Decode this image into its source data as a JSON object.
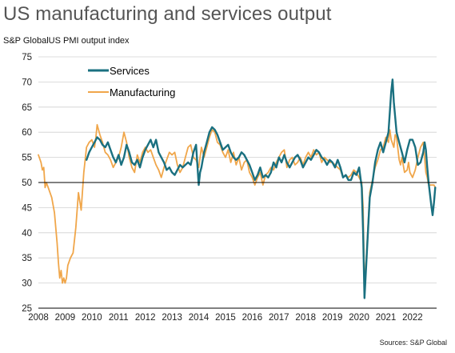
{
  "page": {
    "title": "US manufacturing and services output",
    "source": "Sources: S&P Global"
  },
  "chart_data": {
    "type": "line",
    "title": "US manufacturing and services output",
    "ylabel": "S&P GlobalUS PMI output index",
    "xlabel": "",
    "ylim": [
      25,
      75
    ],
    "yticks": [
      25,
      30,
      35,
      40,
      45,
      50,
      55,
      60,
      65,
      70,
      75
    ],
    "xlim": [
      2008,
      2022.9
    ],
    "xticks": [
      "2008",
      "2009",
      "2010",
      "2011",
      "2012",
      "2013",
      "2014",
      "2015",
      "2016",
      "2017",
      "2018",
      "2019",
      "2020",
      "2021",
      "2022"
    ],
    "reference_line": 50,
    "grid": "horizontal",
    "legend": "top-left",
    "colors": {
      "services": "#1a7080",
      "manufacturing": "#f0a64a"
    },
    "series": [
      {
        "name": "Services",
        "color": "#1a7080",
        "points": [
          [
            2009.8,
            54.5
          ],
          [
            2009.9,
            56
          ],
          [
            2010.0,
            57
          ],
          [
            2010.1,
            58
          ],
          [
            2010.2,
            59
          ],
          [
            2010.3,
            58.5
          ],
          [
            2010.4,
            57.5
          ],
          [
            2010.5,
            57
          ],
          [
            2010.6,
            58
          ],
          [
            2010.7,
            56.5
          ],
          [
            2010.8,
            55
          ],
          [
            2010.9,
            54
          ],
          [
            2011.0,
            55.5
          ],
          [
            2011.1,
            53.5
          ],
          [
            2011.2,
            55
          ],
          [
            2011.3,
            57.5
          ],
          [
            2011.4,
            56
          ],
          [
            2011.5,
            54
          ],
          [
            2011.6,
            53.5
          ],
          [
            2011.7,
            54.5
          ],
          [
            2011.8,
            53
          ],
          [
            2011.9,
            55
          ],
          [
            2012.0,
            56.5
          ],
          [
            2012.1,
            57.5
          ],
          [
            2012.2,
            58.5
          ],
          [
            2012.3,
            57
          ],
          [
            2012.4,
            58.5
          ],
          [
            2012.5,
            56
          ],
          [
            2012.6,
            55
          ],
          [
            2012.7,
            54
          ],
          [
            2012.8,
            52.5
          ],
          [
            2012.9,
            53
          ],
          [
            2013.0,
            52
          ],
          [
            2013.1,
            51.5
          ],
          [
            2013.2,
            52.5
          ],
          [
            2013.3,
            53.5
          ],
          [
            2013.4,
            53
          ],
          [
            2013.5,
            53.5
          ],
          [
            2013.6,
            54
          ],
          [
            2013.7,
            53.5
          ],
          [
            2013.8,
            56
          ],
          [
            2013.9,
            57.5
          ],
          [
            2014.0,
            49.5
          ],
          [
            2014.05,
            52
          ],
          [
            2014.1,
            53
          ],
          [
            2014.2,
            56
          ],
          [
            2014.3,
            58
          ],
          [
            2014.4,
            60
          ],
          [
            2014.5,
            61
          ],
          [
            2014.6,
            60.5
          ],
          [
            2014.7,
            59.5
          ],
          [
            2014.8,
            58
          ],
          [
            2014.9,
            56.5
          ],
          [
            2015.0,
            57
          ],
          [
            2015.1,
            57.5
          ],
          [
            2015.2,
            56
          ],
          [
            2015.3,
            55
          ],
          [
            2015.4,
            54.5
          ],
          [
            2015.5,
            55
          ],
          [
            2015.6,
            56
          ],
          [
            2015.7,
            55.5
          ],
          [
            2015.8,
            54.5
          ],
          [
            2015.9,
            53.5
          ],
          [
            2016.0,
            52
          ],
          [
            2016.1,
            50.5
          ],
          [
            2016.2,
            51.5
          ],
          [
            2016.3,
            53
          ],
          [
            2016.4,
            51
          ],
          [
            2016.5,
            51.5
          ],
          [
            2016.6,
            51
          ],
          [
            2016.7,
            52
          ],
          [
            2016.8,
            54
          ],
          [
            2016.9,
            53
          ],
          [
            2017.0,
            55
          ],
          [
            2017.1,
            54
          ],
          [
            2017.2,
            55.5
          ],
          [
            2017.3,
            54
          ],
          [
            2017.4,
            53
          ],
          [
            2017.5,
            54
          ],
          [
            2017.6,
            55
          ],
          [
            2017.7,
            55.5
          ],
          [
            2017.8,
            54.5
          ],
          [
            2017.9,
            53
          ],
          [
            2018.0,
            54
          ],
          [
            2018.1,
            55
          ],
          [
            2018.2,
            54.5
          ],
          [
            2018.3,
            55.5
          ],
          [
            2018.4,
            56.5
          ],
          [
            2018.5,
            56
          ],
          [
            2018.6,
            55
          ],
          [
            2018.7,
            54.5
          ],
          [
            2018.8,
            53.5
          ],
          [
            2018.9,
            54.5
          ],
          [
            2019.0,
            54
          ],
          [
            2019.1,
            53
          ],
          [
            2019.2,
            54.5
          ],
          [
            2019.3,
            53
          ],
          [
            2019.4,
            51
          ],
          [
            2019.5,
            51.5
          ],
          [
            2019.6,
            50.5
          ],
          [
            2019.7,
            50.5
          ],
          [
            2019.8,
            52
          ],
          [
            2019.9,
            51.5
          ],
          [
            2020.0,
            53
          ],
          [
            2020.1,
            49
          ],
          [
            2020.15,
            40
          ],
          [
            2020.2,
            27
          ],
          [
            2020.3,
            37
          ],
          [
            2020.4,
            47
          ],
          [
            2020.5,
            50
          ],
          [
            2020.6,
            54
          ],
          [
            2020.7,
            56.5
          ],
          [
            2020.8,
            58
          ],
          [
            2020.9,
            56
          ],
          [
            2021.0,
            58
          ],
          [
            2021.05,
            59
          ],
          [
            2021.1,
            60
          ],
          [
            2021.15,
            64
          ],
          [
            2021.2,
            68
          ],
          [
            2021.25,
            70.5
          ],
          [
            2021.3,
            66
          ],
          [
            2021.4,
            60
          ],
          [
            2021.5,
            58
          ],
          [
            2021.6,
            56
          ],
          [
            2021.7,
            54
          ],
          [
            2021.8,
            56.5
          ],
          [
            2021.9,
            58.5
          ],
          [
            2022.0,
            58.5
          ],
          [
            2022.1,
            57
          ],
          [
            2022.2,
            53.5
          ],
          [
            2022.3,
            54
          ],
          [
            2022.4,
            56
          ],
          [
            2022.45,
            58
          ],
          [
            2022.5,
            56.5
          ],
          [
            2022.55,
            53
          ],
          [
            2022.6,
            50
          ],
          [
            2022.7,
            45.5
          ],
          [
            2022.75,
            43.5
          ],
          [
            2022.8,
            46
          ],
          [
            2022.85,
            49
          ]
        ]
      },
      {
        "name": "Manufacturing",
        "color": "#f0a64a",
        "points": [
          [
            2008.0,
            55.5
          ],
          [
            2008.1,
            54
          ],
          [
            2008.15,
            52.5
          ],
          [
            2008.2,
            53
          ],
          [
            2008.25,
            49
          ],
          [
            2008.3,
            50
          ],
          [
            2008.4,
            48.5
          ],
          [
            2008.5,
            47
          ],
          [
            2008.6,
            44
          ],
          [
            2008.7,
            38
          ],
          [
            2008.75,
            34
          ],
          [
            2008.8,
            31
          ],
          [
            2008.85,
            32.5
          ],
          [
            2008.9,
            30
          ],
          [
            2008.95,
            31
          ],
          [
            2009.0,
            30
          ],
          [
            2009.05,
            31
          ],
          [
            2009.1,
            33.5
          ],
          [
            2009.2,
            35
          ],
          [
            2009.3,
            36
          ],
          [
            2009.4,
            41
          ],
          [
            2009.5,
            48
          ],
          [
            2009.6,
            44.5
          ],
          [
            2009.7,
            52
          ],
          [
            2009.8,
            57
          ],
          [
            2009.9,
            58
          ],
          [
            2010.0,
            58.5
          ],
          [
            2010.1,
            57
          ],
          [
            2010.15,
            59
          ],
          [
            2010.2,
            61.5
          ],
          [
            2010.25,
            60.5
          ],
          [
            2010.3,
            59.5
          ],
          [
            2010.4,
            58
          ],
          [
            2010.5,
            56
          ],
          [
            2010.6,
            55.5
          ],
          [
            2010.7,
            54.5
          ],
          [
            2010.8,
            53
          ],
          [
            2010.9,
            54
          ],
          [
            2011.0,
            55
          ],
          [
            2011.1,
            57
          ],
          [
            2011.2,
            60
          ],
          [
            2011.3,
            58
          ],
          [
            2011.4,
            55
          ],
          [
            2011.5,
            53
          ],
          [
            2011.6,
            52
          ],
          [
            2011.7,
            55.5
          ],
          [
            2011.8,
            54
          ],
          [
            2011.9,
            56
          ],
          [
            2012.0,
            57
          ],
          [
            2012.1,
            56
          ],
          [
            2012.2,
            56.5
          ],
          [
            2012.3,
            55
          ],
          [
            2012.4,
            53.5
          ],
          [
            2012.5,
            52.5
          ],
          [
            2012.6,
            51
          ],
          [
            2012.7,
            53
          ],
          [
            2012.8,
            54.5
          ],
          [
            2012.9,
            56
          ],
          [
            2013.0,
            55.5
          ],
          [
            2013.1,
            56
          ],
          [
            2013.2,
            53.5
          ],
          [
            2013.3,
            52
          ],
          [
            2013.4,
            53
          ],
          [
            2013.5,
            55
          ],
          [
            2013.6,
            57
          ],
          [
            2013.7,
            57.5
          ],
          [
            2013.8,
            55
          ],
          [
            2013.9,
            54.5
          ],
          [
            2014.0,
            53
          ],
          [
            2014.1,
            57
          ],
          [
            2014.2,
            55
          ],
          [
            2014.3,
            57
          ],
          [
            2014.4,
            59
          ],
          [
            2014.5,
            60.5
          ],
          [
            2014.6,
            60
          ],
          [
            2014.7,
            58
          ],
          [
            2014.8,
            57.5
          ],
          [
            2014.9,
            56
          ],
          [
            2015.0,
            55
          ],
          [
            2015.1,
            56.5
          ],
          [
            2015.2,
            54
          ],
          [
            2015.3,
            56
          ],
          [
            2015.4,
            53.5
          ],
          [
            2015.5,
            55
          ],
          [
            2015.6,
            52.5
          ],
          [
            2015.7,
            54
          ],
          [
            2015.8,
            54.5
          ],
          [
            2015.9,
            52
          ],
          [
            2016.0,
            51
          ],
          [
            2016.1,
            49.5
          ],
          [
            2016.2,
            51
          ],
          [
            2016.3,
            52
          ],
          [
            2016.4,
            49.5
          ],
          [
            2016.5,
            51.5
          ],
          [
            2016.6,
            52
          ],
          [
            2016.7,
            53
          ],
          [
            2016.8,
            52.5
          ],
          [
            2016.9,
            54
          ],
          [
            2017.0,
            55
          ],
          [
            2017.1,
            56
          ],
          [
            2017.2,
            56.5
          ],
          [
            2017.3,
            53
          ],
          [
            2017.4,
            54.5
          ],
          [
            2017.5,
            55
          ],
          [
            2017.6,
            53.5
          ],
          [
            2017.7,
            54
          ],
          [
            2017.8,
            55
          ],
          [
            2017.9,
            53.5
          ],
          [
            2018.0,
            55
          ],
          [
            2018.1,
            56
          ],
          [
            2018.2,
            55
          ],
          [
            2018.3,
            56.5
          ],
          [
            2018.4,
            55.5
          ],
          [
            2018.5,
            56
          ],
          [
            2018.6,
            54
          ],
          [
            2018.7,
            55
          ],
          [
            2018.8,
            54.5
          ],
          [
            2018.9,
            54
          ],
          [
            2019.0,
            54
          ],
          [
            2019.1,
            53.5
          ],
          [
            2019.2,
            53
          ],
          [
            2019.3,
            52.5
          ],
          [
            2019.4,
            51
          ],
          [
            2019.5,
            51.5
          ],
          [
            2019.6,
            51
          ],
          [
            2019.7,
            51.5
          ],
          [
            2019.8,
            52.5
          ],
          [
            2019.9,
            52
          ],
          [
            2020.0,
            51
          ],
          [
            2020.1,
            50
          ],
          [
            2020.15,
            45
          ],
          [
            2020.2,
            29
          ],
          [
            2020.3,
            38
          ],
          [
            2020.4,
            48
          ],
          [
            2020.5,
            50.5
          ],
          [
            2020.6,
            53
          ],
          [
            2020.7,
            54.5
          ],
          [
            2020.8,
            56.5
          ],
          [
            2020.9,
            57
          ],
          [
            2021.0,
            59
          ],
          [
            2021.1,
            58
          ],
          [
            2021.15,
            60.5
          ],
          [
            2021.2,
            58.5
          ],
          [
            2021.3,
            57
          ],
          [
            2021.35,
            59.5
          ],
          [
            2021.4,
            59
          ],
          [
            2021.5,
            54.5
          ],
          [
            2021.55,
            53.5
          ],
          [
            2021.6,
            55
          ],
          [
            2021.7,
            52
          ],
          [
            2021.8,
            52.5
          ],
          [
            2021.85,
            54
          ],
          [
            2021.9,
            52
          ],
          [
            2022.0,
            51
          ],
          [
            2022.1,
            52.5
          ],
          [
            2022.2,
            55
          ],
          [
            2022.3,
            57
          ],
          [
            2022.4,
            58
          ],
          [
            2022.5,
            52
          ],
          [
            2022.55,
            51
          ],
          [
            2022.6,
            49.5
          ],
          [
            2022.7,
            49.5
          ],
          [
            2022.8,
            49.5
          ],
          [
            2022.85,
            49
          ]
        ]
      }
    ]
  }
}
